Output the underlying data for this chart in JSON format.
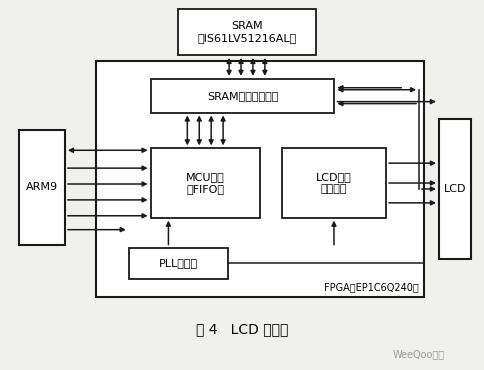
{
  "title": "图 4   LCD 控制器",
  "watermark": "WeeQoo维库",
  "bg_color": "#f0f0ec",
  "sram_label": "SRAM\n（IS61LV51216AL）",
  "sram_ctrl_label": "SRAM读写控制模块",
  "mcu_label": "MCU接口\n（FIFO）",
  "lcd_ctrl_label": "LCD时序\n控制模块",
  "pll_label": "PLL锁相环",
  "arm9_label": "ARM9",
  "lcd_label": "LCD",
  "fpga_label": "FPGA（EP1C6Q240）"
}
